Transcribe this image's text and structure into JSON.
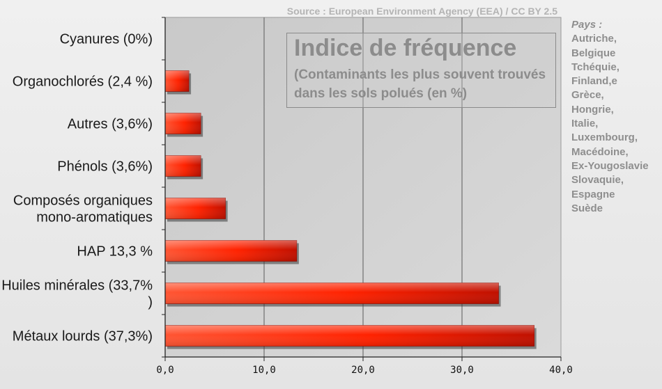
{
  "source": "Source : European Environment Agency (EEA)  / CC BY 2.5",
  "legend_box": {
    "title": "Indice de fréquence",
    "subtitle": "(Contaminants les plus souvent trouvés dans les sols polués (en %)"
  },
  "countries": {
    "title": "Pays :",
    "items": [
      "Autriche,",
      "Belgique",
      "Tchéquie,",
      "Finland,e",
      "Grèce,",
      "Hongrie,",
      "Italie,",
      "Luxembourg,",
      "Macédoine,",
      "Ex-Yougoslavie",
      "Slovaquie,",
      "Espagne",
      "Suède"
    ]
  },
  "chart_data": {
    "type": "bar",
    "orientation": "horizontal",
    "categories": [
      [
        "Cyanures (0%)"
      ],
      [
        "Organochlorés (2,4 %)"
      ],
      [
        "Autres (3,6%)"
      ],
      [
        "Phénols  (3,6%)"
      ],
      [
        "Composés organiques",
        "mono-aromatiques"
      ],
      [
        "HAP 13,3 %"
      ],
      [
        "Huiles minérales (33,7%",
        ")"
      ],
      [
        "Métaux lourds (37,3%)"
      ]
    ],
    "values": [
      0,
      2.4,
      3.6,
      3.6,
      6.1,
      13.3,
      33.7,
      37.3
    ],
    "xlim": [
      0,
      40
    ],
    "x_ticks": [
      0,
      10,
      20,
      30,
      40
    ],
    "x_tick_labels": [
      "0,0",
      "10,0",
      "20,0",
      "30,0",
      "40,0"
    ],
    "grid": true,
    "colors": {
      "bar_light": "#ff5533",
      "bar_mid": "#ff2a00",
      "bar_dark": "#c41200",
      "plot_bg": "#d2d2d2"
    }
  }
}
